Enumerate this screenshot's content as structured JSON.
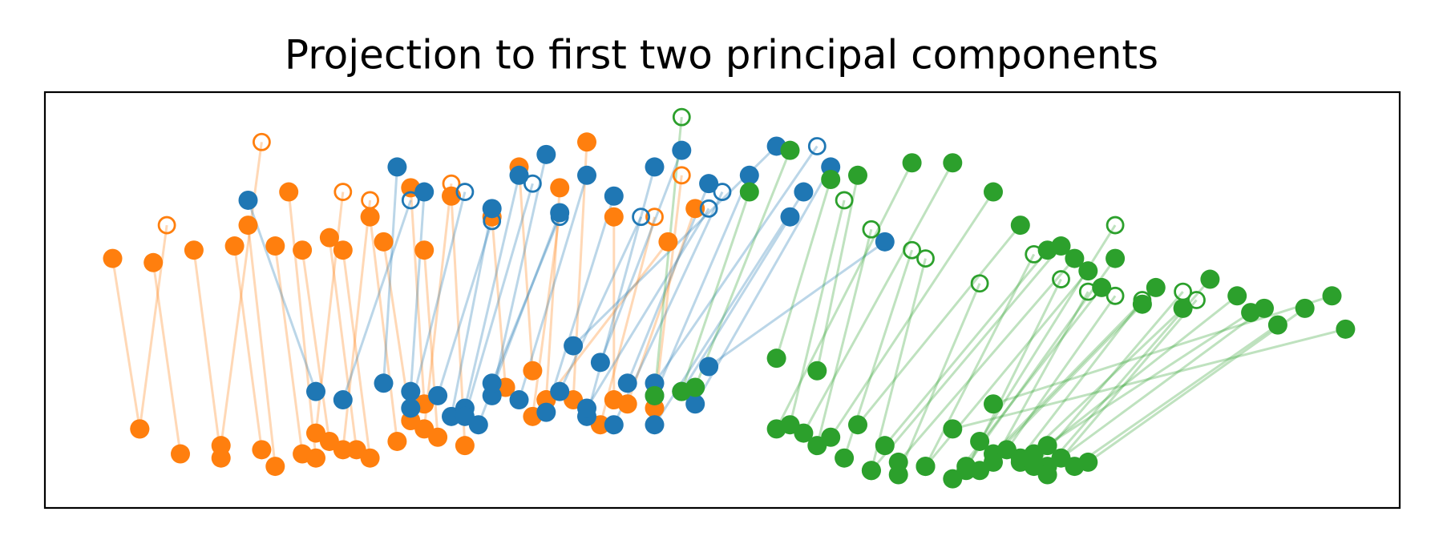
{
  "chart_data": {
    "type": "scatter",
    "title": "Projection to first two principal components",
    "xlim": [
      0,
      100
    ],
    "ylim": [
      0,
      100
    ],
    "series": [
      {
        "color": "#ff7f0e",
        "marker": "filled",
        "x": [
          5,
          8,
          11,
          14,
          15,
          17,
          18,
          19,
          21,
          22,
          24,
          25,
          27,
          28,
          30,
          33,
          35,
          38,
          40,
          42,
          46,
          48
        ],
        "y": [
          60,
          59,
          62,
          63,
          68,
          63,
          76,
          62,
          65,
          62,
          70,
          64,
          77,
          62,
          75,
          70,
          82,
          77,
          88,
          70,
          64,
          72
        ],
        "x2": [
          7,
          10,
          13,
          16,
          17,
          19,
          20,
          21,
          23,
          24,
          26,
          27,
          28,
          29,
          31,
          34,
          36,
          37,
          39,
          42,
          37,
          43
        ],
        "y2": [
          19,
          13,
          12,
          14,
          10,
          13,
          12,
          16,
          14,
          12,
          16,
          21,
          25,
          17,
          15,
          29,
          33,
          26,
          26,
          26,
          26,
          25
        ]
      },
      {
        "color": "#ff7f0e",
        "marker": "hollow",
        "x": [
          9,
          16,
          22,
          24,
          30,
          38,
          45,
          47
        ],
        "y": [
          68,
          88,
          76,
          74,
          78,
          71,
          70,
          80
        ],
        "x2": [
          7,
          13,
          20,
          22,
          28,
          36,
          41,
          45
        ],
        "y2": [
          19,
          15,
          18,
          14,
          19,
          22,
          20,
          24
        ]
      },
      {
        "color": "#1f77b4",
        "marker": "filled",
        "x": [
          15,
          26,
          28,
          33,
          35,
          37,
          38,
          40,
          42,
          45,
          47,
          49,
          52,
          55,
          56,
          58,
          62,
          54
        ],
        "y": [
          74,
          82,
          76,
          72,
          80,
          85,
          71,
          80,
          75,
          82,
          86,
          78,
          80,
          70,
          76,
          82,
          64,
          87
        ],
        "x2": [
          20,
          25,
          27,
          30,
          31,
          33,
          32,
          35,
          37,
          40,
          41,
          43,
          45,
          47,
          45,
          48,
          49,
          39
        ],
        "y2": [
          28,
          30,
          28,
          22,
          24,
          27,
          20,
          26,
          23,
          22,
          35,
          30,
          27,
          28,
          20,
          25,
          34,
          39
        ]
      },
      {
        "color": "#1f77b4",
        "marker": "hollow",
        "x": [
          27,
          31,
          33,
          36,
          38,
          44,
          49,
          50,
          57
        ],
        "y": [
          74,
          76,
          69,
          78,
          70,
          70,
          72,
          76,
          87
        ],
        "x2": [
          22,
          27,
          29,
          31,
          33,
          38,
          40,
          42,
          45
        ],
        "y2": [
          26,
          24,
          27,
          22,
          30,
          28,
          24,
          20,
          30
        ]
      },
      {
        "color": "#2ca02c",
        "marker": "filled",
        "x": [
          52,
          55,
          58,
          60,
          64,
          67,
          70,
          72,
          74,
          75,
          76,
          77,
          78,
          79,
          81,
          82,
          84,
          86,
          88,
          90,
          91,
          93,
          95,
          96,
          89
        ],
        "y": [
          76,
          86,
          79,
          80,
          83,
          83,
          76,
          68,
          62,
          63,
          60,
          57,
          53,
          60,
          49,
          53,
          48,
          55,
          51,
          48,
          44,
          48,
          51,
          43,
          47
        ],
        "x2": [
          47,
          48,
          54,
          57,
          54,
          56,
          58,
          60,
          62,
          61,
          63,
          65,
          67,
          68,
          69,
          70,
          72,
          74,
          74,
          75,
          76,
          77,
          70,
          67,
          73
        ],
        "y2": [
          28,
          29,
          36,
          33,
          19,
          18,
          17,
          20,
          15,
          9,
          11,
          10,
          7,
          10,
          9,
          13,
          11,
          10,
          15,
          12,
          10,
          11,
          25,
          19,
          13
        ]
      },
      {
        "color": "#2ca02c",
        "marker": "hollow",
        "x": [
          59,
          61,
          64,
          65,
          69,
          73,
          75,
          77,
          79,
          81,
          84,
          85,
          79,
          47
        ],
        "y": [
          74,
          67,
          62,
          60,
          54,
          61,
          55,
          52,
          51,
          50,
          52,
          50,
          68,
          94
        ],
        "x2": [
          55,
          57,
          59,
          61,
          63,
          65,
          68,
          70,
          71,
          72,
          73,
          74,
          69,
          45
        ],
        "y2": [
          20,
          15,
          12,
          9,
          8,
          10,
          9,
          11,
          14,
          12,
          10,
          8,
          16,
          27
        ]
      }
    ]
  }
}
